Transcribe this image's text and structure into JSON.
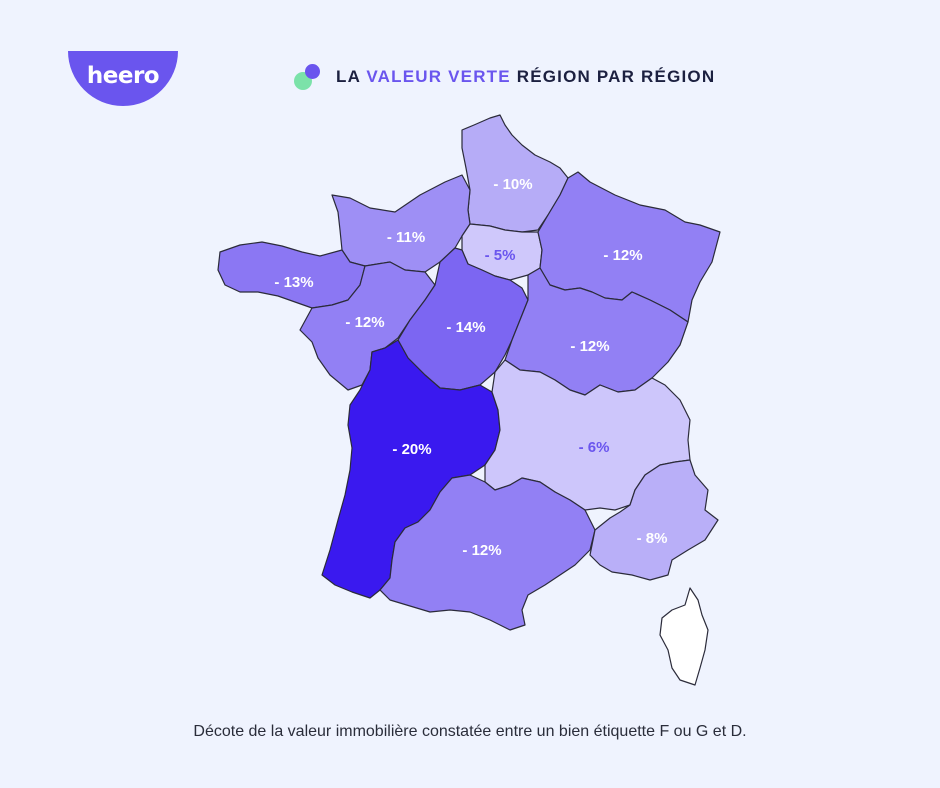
{
  "brand": {
    "logo_text": "heero",
    "color": "#6a55ee"
  },
  "title": {
    "part1": "LA ",
    "accent": "VALEUR VERTE",
    "part2": " RÉGION PAR RÉGION",
    "accent_color": "#6a55ee"
  },
  "regions": [
    {
      "id": "hauts-de-france",
      "label": "- 10%",
      "value": -10,
      "fill": "#b6acf7",
      "label_color": "#ffffff"
    },
    {
      "id": "normandie",
      "label": "- 11%",
      "value": -11,
      "fill": "#9e8ff5",
      "label_color": "#ffffff"
    },
    {
      "id": "ile-de-france",
      "label": "- 5%",
      "value": -5,
      "fill": "#cfc8fb",
      "label_color": "#6a55ee"
    },
    {
      "id": "grand-est",
      "label": "- 12%",
      "value": -12,
      "fill": "#9280f4",
      "label_color": "#ffffff"
    },
    {
      "id": "bretagne",
      "label": "- 13%",
      "value": -13,
      "fill": "#8b77f3",
      "label_color": "#ffffff"
    },
    {
      "id": "pays-de-la-loire",
      "label": "- 12%",
      "value": -12,
      "fill": "#9280f4",
      "label_color": "#ffffff"
    },
    {
      "id": "centre-val-de-loire",
      "label": "- 14%",
      "value": -14,
      "fill": "#7c66f2",
      "label_color": "#ffffff"
    },
    {
      "id": "bourgogne-franche-comte",
      "label": "- 12%",
      "value": -12,
      "fill": "#9280f4",
      "label_color": "#ffffff"
    },
    {
      "id": "nouvelle-aquitaine",
      "label": "- 20%",
      "value": -20,
      "fill": "#3a19ef",
      "label_color": "#ffffff"
    },
    {
      "id": "auvergne-rhone-alpes",
      "label": "- 6%",
      "value": -6,
      "fill": "#cdc6fb",
      "label_color": "#6a55ee"
    },
    {
      "id": "occitanie",
      "label": "- 12%",
      "value": -12,
      "fill": "#9280f4",
      "label_color": "#ffffff"
    },
    {
      "id": "provence-alpes-cote-d-azur",
      "label": "- 8%",
      "value": -8,
      "fill": "#b9aff8",
      "label_color": "#ffffff"
    },
    {
      "id": "corse",
      "label": "",
      "fill": "#ffffff",
      "label_color": "#ffffff"
    }
  ],
  "caption": "Décote de la valeur immobilière constatée entre un bien étiquette F ou G et D."
}
